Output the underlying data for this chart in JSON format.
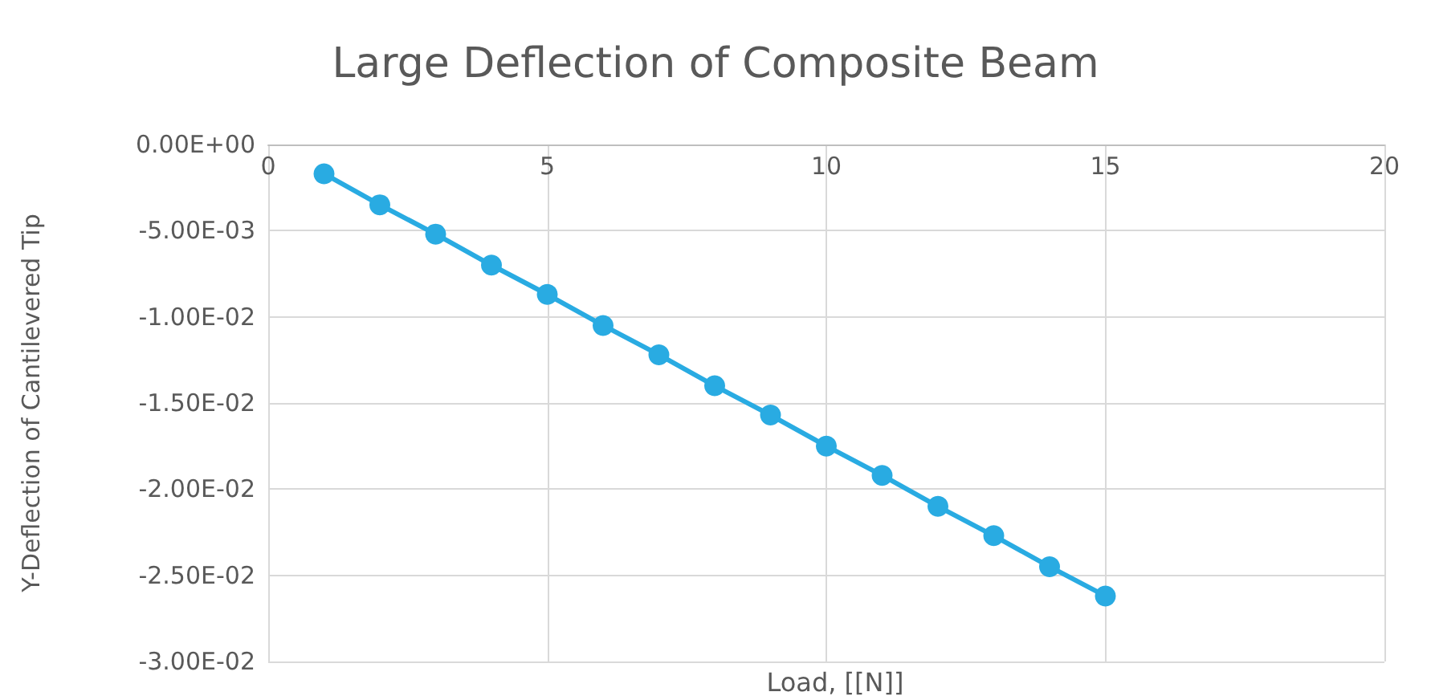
{
  "chart_data": {
    "type": "line",
    "title": "Large Deflection of Composite Beam",
    "xlabel": "Load, [[N]]",
    "ylabel": "Y-Deflection of Cantilevered Tip",
    "x": [
      1,
      2,
      3,
      4,
      5,
      6,
      7,
      8,
      9,
      10,
      11,
      12,
      13,
      14,
      15
    ],
    "series": [
      {
        "color": "#29abe2",
        "values": [
          -0.0017,
          -0.0035,
          -0.0052,
          -0.007,
          -0.0087,
          -0.0105,
          -0.0122,
          -0.014,
          -0.0157,
          -0.0175,
          -0.0192,
          -0.021,
          -0.0227,
          -0.0245,
          -0.0262
        ]
      }
    ],
    "xlim": [
      0,
      20
    ],
    "xticks": [
      0,
      5,
      10,
      15,
      20
    ],
    "ylim": [
      -0.03,
      0
    ],
    "yticks": [
      {
        "value": 0,
        "label": "0.00E+00"
      },
      {
        "value": -0.005,
        "label": "-5.00E-03"
      },
      {
        "value": -0.01,
        "label": "-1.00E-02"
      },
      {
        "value": -0.015,
        "label": "-1.50E-02"
      },
      {
        "value": -0.02,
        "label": "-2.00E-02"
      },
      {
        "value": -0.025,
        "label": "-2.50E-02"
      },
      {
        "value": -0.03,
        "label": "-3.00E-02"
      }
    ],
    "grid": true,
    "marker": "circle",
    "line_style": "solid"
  }
}
